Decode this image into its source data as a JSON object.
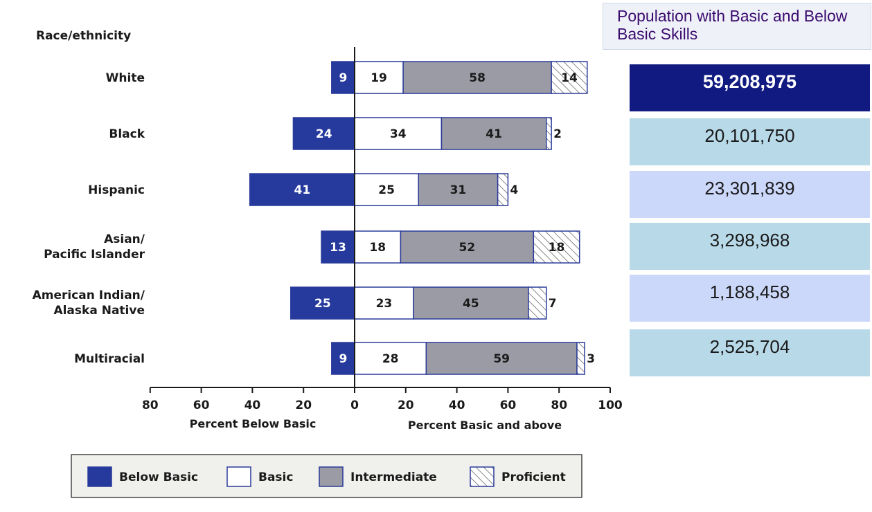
{
  "chart_data": {
    "type": "bar",
    "category_header": "Race/ethnicity",
    "categories": [
      "White",
      "Black",
      "Hispanic",
      "Asian/\nPacific Islander",
      "American Indian/\nAlaska Native",
      "Multiracial"
    ],
    "series": [
      {
        "name": "Below Basic",
        "values": [
          9,
          24,
          41,
          13,
          25,
          9
        ],
        "color": "#263a9e",
        "direction": "left"
      },
      {
        "name": "Basic",
        "values": [
          19,
          34,
          25,
          18,
          23,
          28
        ],
        "color": "#ffffff",
        "direction": "right"
      },
      {
        "name": "Intermediate",
        "values": [
          58,
          41,
          31,
          52,
          45,
          59
        ],
        "color": "#9b9ba6",
        "direction": "right"
      },
      {
        "name": "Proficient",
        "values": [
          14,
          2,
          4,
          18,
          7,
          3
        ],
        "color": "hatched",
        "direction": "right"
      }
    ],
    "xlabel_left": "Percent Below Basic",
    "xlabel_right": "Percent Basic and above",
    "xlim": [
      -80,
      100
    ],
    "x_ticks": [
      "80",
      "60",
      "40",
      "20",
      "0",
      "20",
      "40",
      "60",
      "80",
      "100"
    ],
    "legend": [
      "Below Basic",
      "Basic",
      "Intermediate",
      "Proficient"
    ],
    "legend_position": "bottom",
    "grid": false
  },
  "population": {
    "title": "Population with Basic and Below Basic Skills",
    "values": [
      "59,208,975",
      "20,101,750",
      "23,301,839",
      "3,298,968",
      "1,188,458",
      "2,525,704"
    ]
  },
  "colors": {
    "below_basic": "#263a9e",
    "border": "#2a3a9a",
    "intermediate": "#9b9ba6",
    "title_text": "#3b0a6e",
    "pop_dark": "#101a80",
    "pop_light_blue": "#b8d9e8",
    "pop_lavender": "#ccd8fa"
  }
}
